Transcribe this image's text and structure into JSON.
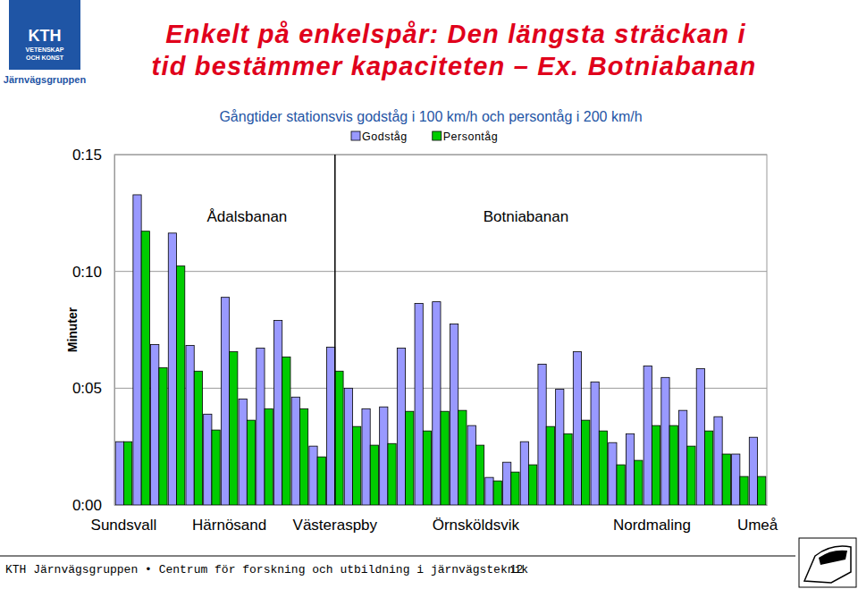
{
  "page": {
    "logo_lines": [
      "KTH",
      "VETENSKAP",
      "OCH KONST"
    ],
    "group": "Järnvägsgruppen",
    "heading": [
      "Enkelt på enkelspår: Den längsta sträckan i",
      "tid bestämmer kapaciteten – Ex. Botniabanan"
    ],
    "footer": "KTH Järnvägsgruppen • Centrum för forskning och utbildning i järnvägsteknik",
    "page_number": "12"
  },
  "chart_data": {
    "type": "bar",
    "title": "Gångtider stationsvis godståg i 100 km/h och persontåg i 200 km/h",
    "y_label": "Minuter",
    "annotations": [
      "Ådalsbanan",
      "Botniabanan"
    ],
    "categories": [
      "Sundsvall",
      null,
      null,
      null,
      null,
      null,
      "Härnösand",
      null,
      null,
      null,
      null,
      null,
      "Västeraspby",
      null,
      null,
      null,
      null,
      null,
      null,
      null,
      "Örnsköldsvik",
      null,
      null,
      null,
      null,
      null,
      null,
      null,
      null,
      null,
      "Nordmaling",
      null,
      null,
      null,
      null,
      null,
      "Umeå"
    ],
    "series": [
      {
        "name": "Godståg",
        "color": "#9999ff",
        "values": [
          2.71,
          13.28,
          6.87,
          11.64,
          6.83,
          3.89,
          8.89,
          4.54,
          6.72,
          7.9,
          4.62,
          2.52,
          6.76,
          5.0,
          4.12,
          4.2,
          6.72,
          8.63,
          8.7,
          7.75,
          3.4,
          1.18,
          1.83,
          2.71,
          6.03,
          4.96,
          6.56,
          5.27,
          2.67,
          3.05,
          5.95,
          5.46,
          4.05,
          5.84,
          3.78,
          2.18,
          2.9
        ]
      },
      {
        "name": "Persontåg",
        "color": "#00cc00",
        "values": [
          2.71,
          11.72,
          5.88,
          10.23,
          5.73,
          3.21,
          6.56,
          3.63,
          4.12,
          6.34,
          4.12,
          2.06,
          5.73,
          3.36,
          2.56,
          2.63,
          4.01,
          3.17,
          4.01,
          4.05,
          2.56,
          1.03,
          1.41,
          1.72,
          3.36,
          3.05,
          3.63,
          3.17,
          1.72,
          1.91,
          3.4,
          3.4,
          2.52,
          3.17,
          2.18,
          1.22,
          1.22
        ]
      }
    ],
    "ylim": [
      0,
      15
    ],
    "yticks": [
      {
        "value": 0,
        "label": "0:00"
      },
      {
        "value": 5,
        "label": "0:05"
      },
      {
        "value": 10,
        "label": "0:10"
      },
      {
        "value": 15,
        "label": "0:15"
      }
    ],
    "grid": true,
    "legend": "top"
  }
}
